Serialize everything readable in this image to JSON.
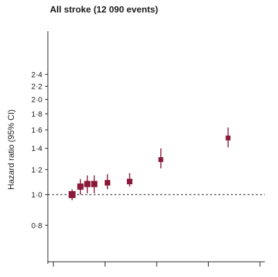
{
  "chart_data": {
    "type": "scatter",
    "title": "All stroke (12 090 events)",
    "ylabel": "Hazard ratio (95% CI)",
    "xlabel": "",
    "yscale": "log",
    "ylim": [
      0.7,
      2.5
    ],
    "yticks": [
      0.8,
      1.0,
      1.2,
      1.4,
      1.6,
      1.8,
      2.0,
      2.2,
      2.4
    ],
    "ytick_labels": [
      "0·8",
      "1·0",
      "1·2",
      "1·4",
      "1·6",
      "1·8",
      "2·0",
      "2·2",
      "2·4"
    ],
    "xtick_count": 5,
    "reference_line": 1.0,
    "marker_color": "#8b1a3a",
    "points": [
      {
        "hr": 1.0,
        "lo": 0.96,
        "hi": 1.04
      },
      {
        "hr": 1.06,
        "lo": 1.0,
        "hi": 1.12
      },
      {
        "hr": 1.08,
        "lo": 1.01,
        "hi": 1.15
      },
      {
        "hr": 1.08,
        "lo": 1.01,
        "hi": 1.15
      },
      {
        "hr": 1.09,
        "lo": 1.04,
        "hi": 1.16
      },
      {
        "hr": 1.1,
        "lo": 1.06,
        "hi": 1.17
      },
      {
        "hr": 1.29,
        "lo": 1.21,
        "hi": 1.4
      },
      {
        "hr": 1.51,
        "lo": 1.41,
        "hi": 1.63
      }
    ]
  }
}
